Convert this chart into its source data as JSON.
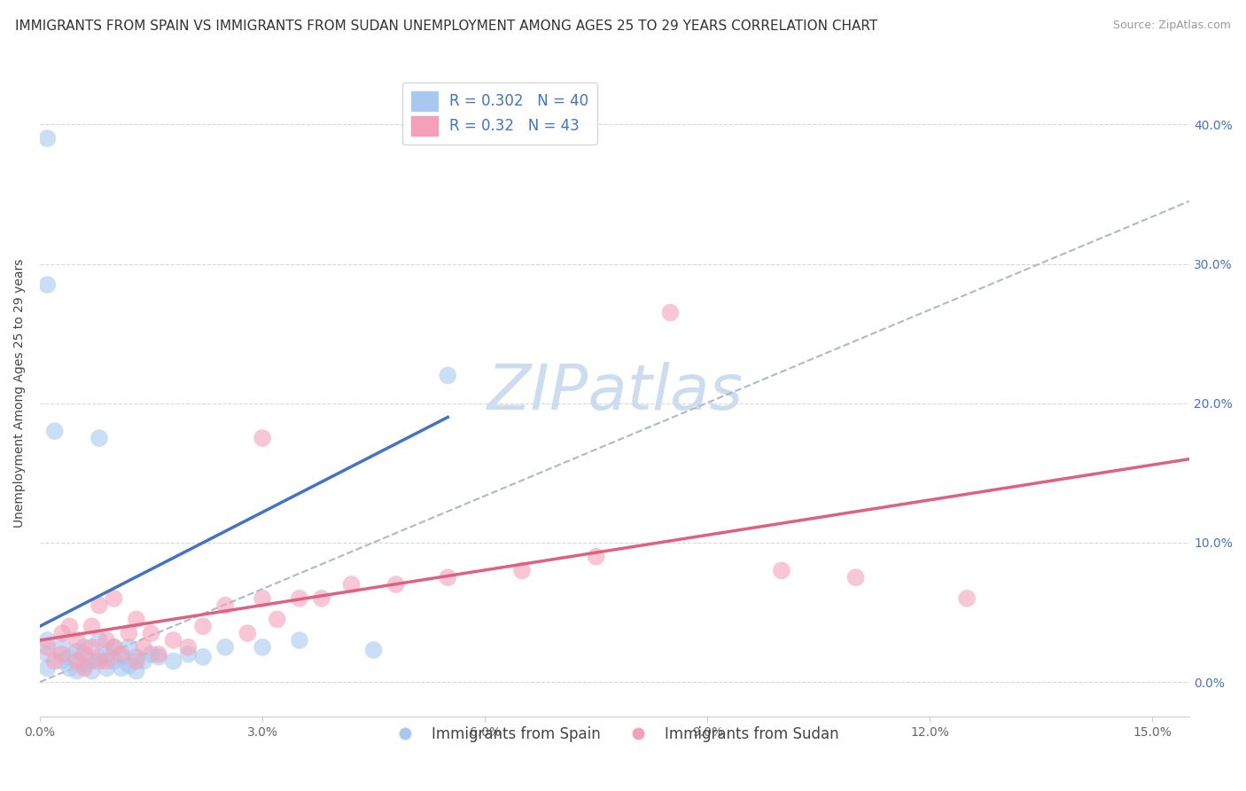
{
  "title": "IMMIGRANTS FROM SPAIN VS IMMIGRANTS FROM SUDAN UNEMPLOYMENT AMONG AGES 25 TO 29 YEARS CORRELATION CHART",
  "source": "Source: ZipAtlas.com",
  "ylabel": "Unemployment Among Ages 25 to 29 years",
  "xlabel": "",
  "r_spain": 0.302,
  "n_spain": 40,
  "r_sudan": 0.32,
  "n_sudan": 43,
  "color_spain": "#a8c8f0",
  "color_sudan": "#f4a0b8",
  "color_spain_line": "#4472c4",
  "color_sudan_line": "#e06080",
  "color_dashed": "#b0b8c8",
  "xlim": [
    0.0,
    0.155
  ],
  "ylim": [
    -0.025,
    0.44
  ],
  "xticks": [
    0.0,
    0.03,
    0.06,
    0.09,
    0.12,
    0.15
  ],
  "xtick_labels": [
    "0.0%",
    "3.0%",
    "6.0%",
    "9.0%",
    "12.0%",
    "15.0%"
  ],
  "yticks_right": [
    0.0,
    0.1,
    0.2,
    0.3,
    0.4
  ],
  "ytick_labels_right": [
    "0.0%",
    "10.0%",
    "20.0%",
    "30.0%",
    "40.0%"
  ],
  "watermark_text": "ZIPatlas",
  "legend_label_spain": "Immigrants from Spain",
  "legend_label_sudan": "Immigrants from Sudan",
  "title_fontsize": 11,
  "axis_fontsize": 10,
  "tick_fontsize": 10,
  "legend_fontsize": 12,
  "watermark_fontsize": 52,
  "watermark_color": "#ccddef",
  "background_color": "#ffffff",
  "grid_color": "#d8d8d8",
  "spain_x": [
    0.001,
    0.001,
    0.001,
    0.003,
    0.003,
    0.004,
    0.004,
    0.005,
    0.005,
    0.006,
    0.006,
    0.007,
    0.007,
    0.008,
    0.008,
    0.009,
    0.009,
    0.01,
    0.01,
    0.011,
    0.011,
    0.012,
    0.012,
    0.013,
    0.013,
    0.014,
    0.015,
    0.016,
    0.018,
    0.02,
    0.022,
    0.025,
    0.03,
    0.035,
    0.045,
    0.055,
    0.001,
    0.001,
    0.002,
    0.008
  ],
  "spain_y": [
    0.01,
    0.02,
    0.03,
    0.015,
    0.025,
    0.01,
    0.018,
    0.008,
    0.022,
    0.012,
    0.025,
    0.008,
    0.015,
    0.018,
    0.03,
    0.01,
    0.02,
    0.015,
    0.025,
    0.01,
    0.018,
    0.012,
    0.025,
    0.008,
    0.018,
    0.015,
    0.02,
    0.018,
    0.015,
    0.02,
    0.018,
    0.025,
    0.025,
    0.03,
    0.023,
    0.22,
    0.39,
    0.285,
    0.18,
    0.175
  ],
  "sudan_x": [
    0.001,
    0.002,
    0.003,
    0.003,
    0.004,
    0.005,
    0.005,
    0.006,
    0.006,
    0.007,
    0.007,
    0.008,
    0.008,
    0.009,
    0.009,
    0.01,
    0.01,
    0.011,
    0.012,
    0.013,
    0.013,
    0.014,
    0.015,
    0.016,
    0.018,
    0.02,
    0.022,
    0.025,
    0.028,
    0.03,
    0.032,
    0.035,
    0.038,
    0.042,
    0.048,
    0.055,
    0.065,
    0.075,
    0.085,
    0.1,
    0.11,
    0.125,
    0.03
  ],
  "sudan_y": [
    0.025,
    0.015,
    0.035,
    0.02,
    0.04,
    0.015,
    0.03,
    0.02,
    0.01,
    0.025,
    0.04,
    0.015,
    0.055,
    0.03,
    0.015,
    0.025,
    0.06,
    0.02,
    0.035,
    0.015,
    0.045,
    0.025,
    0.035,
    0.02,
    0.03,
    0.025,
    0.04,
    0.055,
    0.035,
    0.06,
    0.045,
    0.06,
    0.06,
    0.07,
    0.07,
    0.075,
    0.08,
    0.09,
    0.265,
    0.08,
    0.075,
    0.06,
    0.175
  ],
  "spain_line_x0": 0.0,
  "spain_line_y0": 0.04,
  "spain_line_x1": 0.055,
  "spain_line_y1": 0.19,
  "sudan_line_x0": 0.0,
  "sudan_line_y0": 0.03,
  "sudan_line_x1": 0.155,
  "sudan_line_y1": 0.16,
  "dash_line_x0": 0.0,
  "dash_line_y0": 0.0,
  "dash_line_x1": 0.155,
  "dash_line_y1": 0.345
}
